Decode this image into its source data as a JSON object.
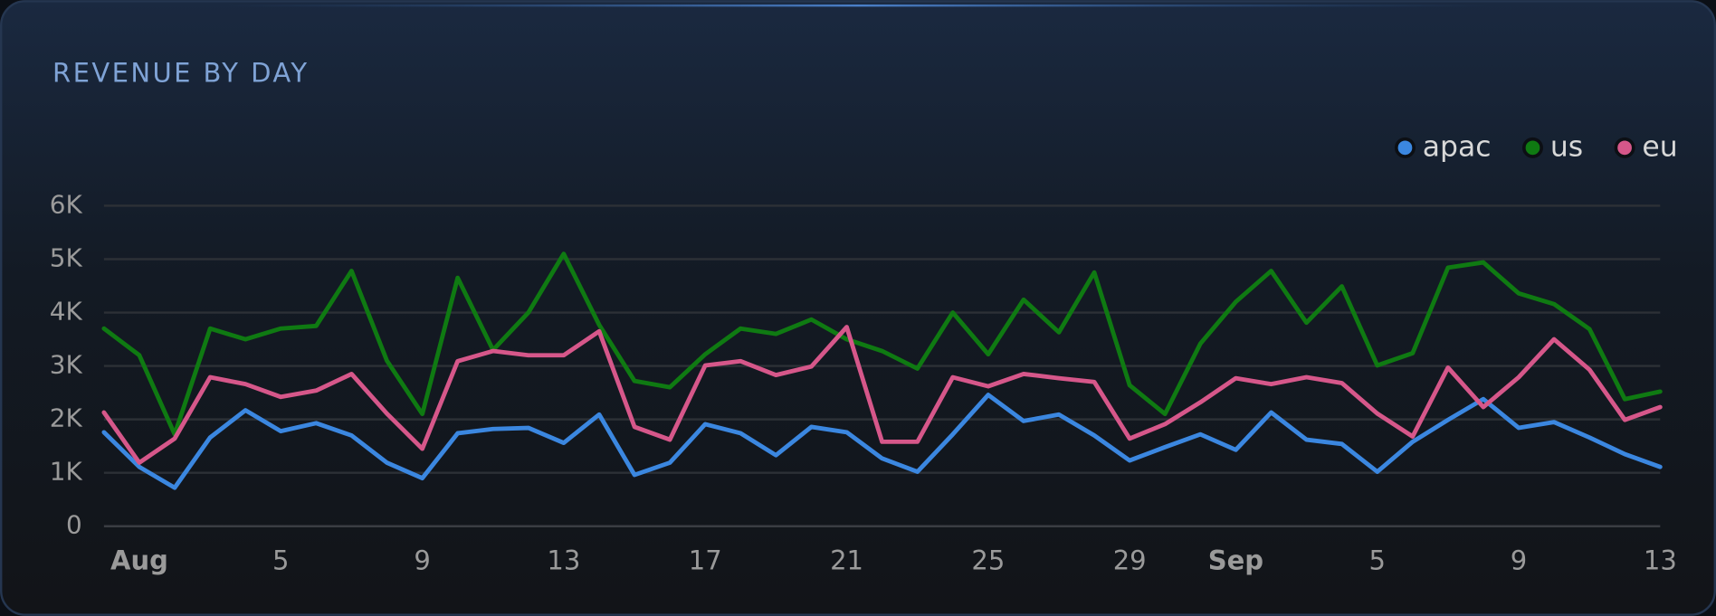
{
  "chart_data": {
    "type": "line",
    "title": "REVENUE BY DAY",
    "x": [
      "07-31",
      "08-01",
      "08-02",
      "08-03",
      "08-04",
      "08-05",
      "08-06",
      "08-07",
      "08-08",
      "08-09",
      "08-10",
      "08-11",
      "08-12",
      "08-13",
      "08-14",
      "08-15",
      "08-16",
      "08-17",
      "08-18",
      "08-19",
      "08-20",
      "08-21",
      "08-22",
      "08-23",
      "08-24",
      "08-25",
      "08-26",
      "08-27",
      "08-28",
      "08-29",
      "08-30",
      "08-31",
      "09-01",
      "09-02",
      "09-03",
      "09-04",
      "09-05",
      "09-06",
      "09-07",
      "09-08",
      "09-09",
      "09-10",
      "09-11",
      "09-12",
      "09-13"
    ],
    "xlim": [
      "07-31",
      "09-13"
    ],
    "xticks": [
      {
        "value": "08-01",
        "label": "Aug"
      },
      {
        "value": "08-05",
        "label": "5"
      },
      {
        "value": "08-09",
        "label": "9"
      },
      {
        "value": "08-13",
        "label": "13"
      },
      {
        "value": "08-17",
        "label": "17"
      },
      {
        "value": "08-21",
        "label": "21"
      },
      {
        "value": "08-25",
        "label": "25"
      },
      {
        "value": "08-29",
        "label": "29"
      },
      {
        "value": "09-01",
        "label": "Sep"
      },
      {
        "value": "09-05",
        "label": "5"
      },
      {
        "value": "09-09",
        "label": "9"
      },
      {
        "value": "09-13",
        "label": "13"
      }
    ],
    "ylim": [
      0,
      6000
    ],
    "yticks": [
      0,
      {
        "value": 1000,
        "label": "1K"
      },
      {
        "value": 2000,
        "label": "2K"
      },
      {
        "value": 3000,
        "label": "3K"
      },
      {
        "value": 4000,
        "label": "4K"
      },
      {
        "value": 5000,
        "label": "5K"
      },
      {
        "value": 6000,
        "label": "6K"
      }
    ],
    "grid": true,
    "legend": "top-right",
    "series": [
      {
        "name": "apac",
        "color": "#3b87e0",
        "values": [
          1760,
          1110,
          720,
          1660,
          2170,
          1780,
          1930,
          1700,
          1190,
          900,
          1740,
          1820,
          1840,
          1560,
          2090,
          960,
          1190,
          1910,
          1740,
          1330,
          1860,
          1760,
          1270,
          1020,
          1720,
          2460,
          1970,
          2090,
          1700,
          1230,
          1480,
          1720,
          1430,
          2130,
          1620,
          1540,
          1020,
          1580,
          1990,
          2380,
          1840,
          1950,
          1660,
          1350,
          1110
        ]
      },
      {
        "name": "us",
        "color": "#0f7a12",
        "values": [
          3700,
          3200,
          1720,
          3700,
          3500,
          3700,
          3750,
          4780,
          3100,
          2100,
          4650,
          3300,
          4000,
          5100,
          3770,
          2720,
          2600,
          3220,
          3700,
          3600,
          3870,
          3500,
          3280,
          2950,
          4000,
          3220,
          4240,
          3630,
          4750,
          2640,
          2100,
          3420,
          4200,
          4780,
          3810,
          4490,
          3010,
          3240,
          4840,
          4940,
          4360,
          4160,
          3690,
          2380,
          2520
        ]
      },
      {
        "name": "eu",
        "color": "#d6578a",
        "values": [
          2130,
          1190,
          1640,
          2790,
          2660,
          2420,
          2540,
          2850,
          2110,
          1450,
          3090,
          3280,
          3200,
          3200,
          3650,
          1860,
          1620,
          3010,
          3090,
          2830,
          2990,
          3730,
          1580,
          1580,
          2790,
          2620,
          2850,
          2770,
          2700,
          1640,
          1910,
          2320,
          2770,
          2660,
          2790,
          2680,
          2110,
          1680,
          2970,
          2230,
          2790,
          3500,
          2930,
          1990,
          2230
        ]
      }
    ]
  }
}
